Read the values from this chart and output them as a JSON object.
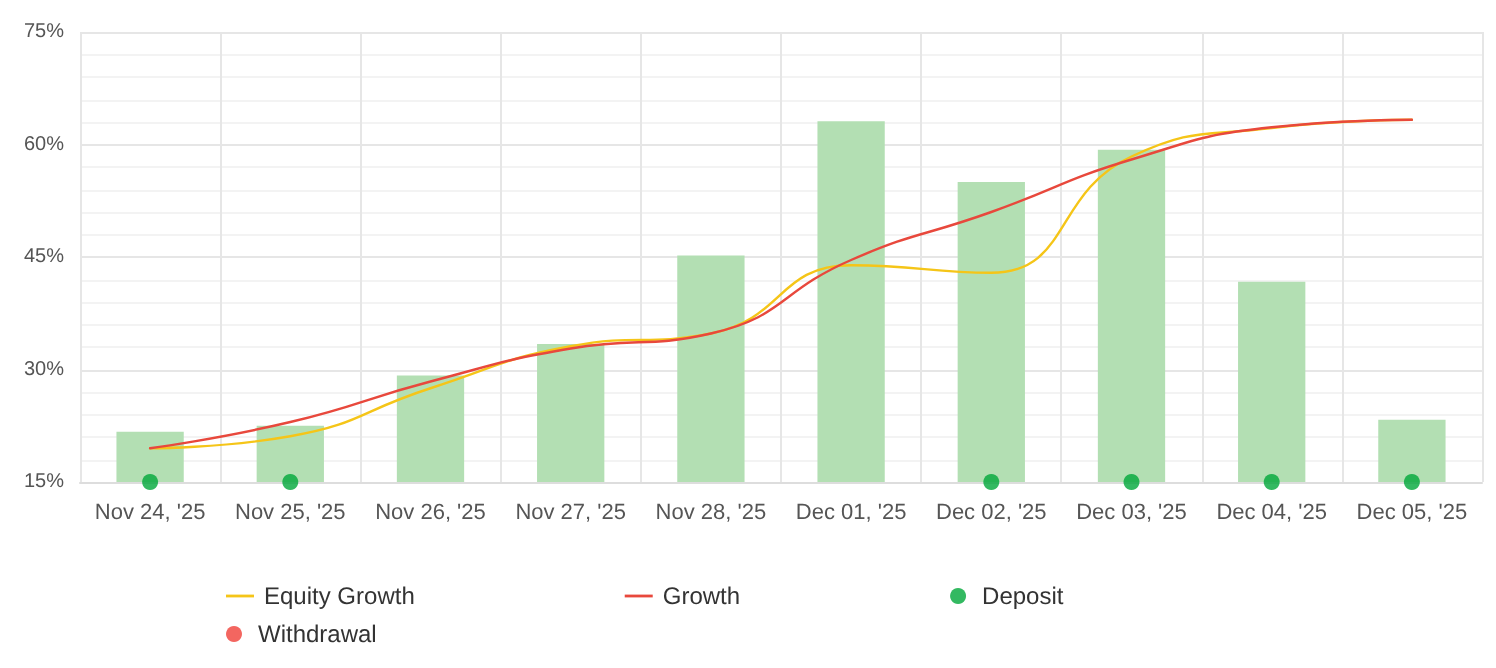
{
  "chart_data": {
    "type": "bar",
    "categories": [
      "Nov 24, '25",
      "Nov 25, '25",
      "Nov 26, '25",
      "Nov 27, '25",
      "Nov 28, '25",
      "Dec 01, '25",
      "Dec 02, '25",
      "Dec 03, '25",
      "Dec 04, '25",
      "Dec 05, '25"
    ],
    "series": [
      {
        "color": "#b3dfb3",
        "values": [
          21.7,
          22.5,
          29.2,
          33.4,
          45.2,
          63.1,
          55.0,
          59.3,
          41.7,
          23.3
        ]
      },
      {
        "type": "line",
        "name": "Equity Growth",
        "color": "#f5c518",
        "values": [
          19.5,
          21.1,
          27.5,
          33.1,
          34.8,
          43.9,
          42.9,
          58.4,
          62.2,
          63.3
        ]
      },
      {
        "type": "line",
        "name": "Growth",
        "color": "#e8483c",
        "values": [
          19.5,
          23.0,
          28.4,
          32.8,
          34.8,
          44.6,
          51.0,
          58.0,
          62.3,
          63.3
        ]
      },
      {
        "type": "scatter",
        "name": "Deposit",
        "color": "#00a83a",
        "x": [
          "Nov 24, '25",
          "Nov 25, '25",
          "Dec 02, '25",
          "Dec 03, '25",
          "Dec 04, '25",
          "Dec 05, '25"
        ],
        "values": [
          15,
          15,
          15,
          15,
          15,
          15
        ]
      },
      {
        "type": "scatter",
        "name": "Withdrawal",
        "color": "#f04038",
        "values": [
          null,
          null,
          null,
          null,
          null,
          null,
          null,
          null,
          null,
          null
        ]
      }
    ],
    "ylim": [
      15,
      75
    ],
    "yticks": [
      {
        "value": 15,
        "label": "15%"
      },
      {
        "value": 30,
        "label": "30%"
      },
      {
        "value": 45,
        "label": "45%"
      },
      {
        "value": 60,
        "label": "60%"
      },
      {
        "value": 75,
        "label": "75%"
      }
    ],
    "grid": true,
    "legend": "bottom",
    "line_style": "solid"
  }
}
